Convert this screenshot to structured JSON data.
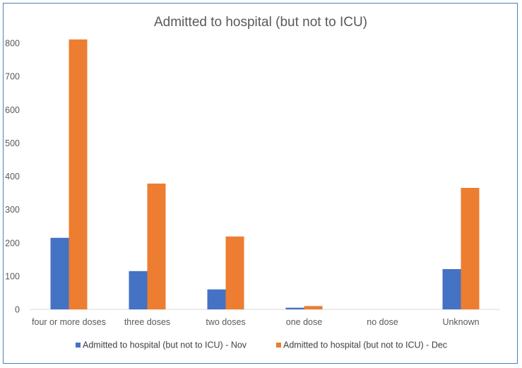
{
  "chart_data": {
    "type": "bar",
    "title": "Admitted to hospital (but not to ICU)",
    "xlabel": "",
    "ylabel": "",
    "ylim": [
      0,
      850
    ],
    "yticks": [
      0,
      100,
      200,
      300,
      400,
      500,
      600,
      700,
      800
    ],
    "grid": false,
    "legend_position": "bottom",
    "categories": [
      "four or more doses",
      "three doses",
      "two doses",
      "one dose",
      "no dose",
      "Unknown"
    ],
    "series": [
      {
        "name": "Admitted to hospital (but not to ICU) - Nov",
        "color": "#4472c4",
        "values": [
          215,
          115,
          60,
          5,
          0,
          121
        ]
      },
      {
        "name": "Admitted to hospital (but not to ICU) - Dec",
        "color": "#ed7d31",
        "values": [
          811,
          378,
          219,
          10,
          0,
          365
        ]
      }
    ]
  }
}
